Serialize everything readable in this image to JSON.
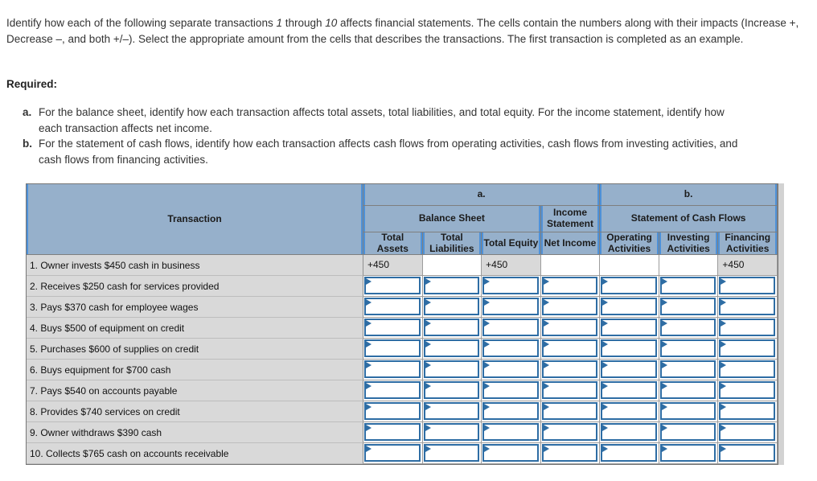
{
  "intro": {
    "part1": "Identify how each of the following separate transactions ",
    "num1": "1",
    "part2": " through ",
    "num2": "10",
    "part3": " affects financial statements. The cells contain the numbers along with their impacts (Increase +, Decrease –, and both +/–). Select the appropriate amount from the cells that describes the transactions. The first transaction is completed as an example."
  },
  "required": {
    "label": "Required:",
    "items": [
      {
        "marker": "a.",
        "text": "For the balance sheet, identify how each transaction affects total assets, total liabilities, and total equity. For the income statement, identify how each transaction affects net income."
      },
      {
        "marker": "b.",
        "text": "For the statement of cash flows, identify how each transaction affects cash flows from operating activities, cash flows from investing activities, and cash flows from financing activities."
      }
    ]
  },
  "table": {
    "header": {
      "transaction": "Transaction",
      "group_a": "a.",
      "group_b": "b.",
      "balance_sheet": "Balance Sheet",
      "income_statement": "Income Statement",
      "cash_flows": "Statement of Cash Flows",
      "columns": [
        "Total Assets",
        "Total Liabilities",
        "Total Equity",
        "Net Income",
        "Operating Activities",
        "Investing Activities",
        "Financing Activities"
      ]
    },
    "example_row": {
      "label": "1. Owner invests $450 cash in business",
      "values": [
        "+450",
        "",
        "+450",
        "",
        "",
        "",
        "+450"
      ]
    },
    "rows": [
      "2. Receives $250 cash for services provided",
      "3. Pays $370 cash for employee wages",
      "4. Buys $500 of equipment on credit",
      "5. Purchases $600 of supplies on credit",
      "6. Buys equipment for $700 cash",
      "7. Pays $540 on accounts payable",
      "8. Provides $740 services on credit",
      "9. Owner withdraws $390 cash",
      "10. Collects $765 cash on accounts receivable"
    ]
  },
  "colors": {
    "header_fill": "#96b0cb",
    "header_stripe": "#4e91d8",
    "example_fill": "#d9d9d9",
    "dropdown_border": "#2e6da4"
  }
}
